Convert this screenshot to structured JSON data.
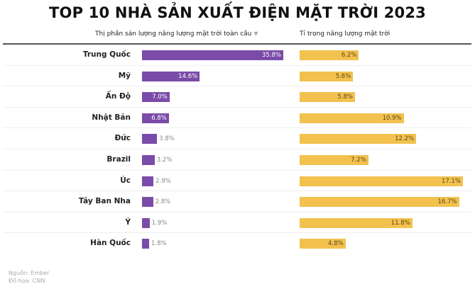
{
  "chart_data": {
    "type": "bar",
    "title": "TOP 10 NHÀ SẢN XUẤT ĐIỆN MẶT TRỜI 2023",
    "categories": [
      "Trung Quốc",
      "Mỹ",
      "Ấn Độ",
      "Nhật Bản",
      "Đức",
      "Brazil",
      "Úc",
      "Tây Ban Nha",
      "Ý",
      "Hàn Quốc"
    ],
    "series": [
      {
        "name": "Thị phần sản lượng năng lượng mặt trời toàn cầu",
        "values": [
          35.8,
          14.6,
          7.0,
          6.8,
          3.8,
          3.2,
          2.9,
          2.8,
          1.9,
          1.8
        ],
        "labels": [
          "35.8%",
          "14.6%",
          "7.0%",
          "6.8%",
          "3.8%",
          "3.2%",
          "2.9%",
          "2.8%",
          "1.9%",
          "1.8%"
        ],
        "color": "#7a4ba8",
        "sorted": true
      },
      {
        "name": "Tỉ trọng năng lượng mặt trời",
        "values": [
          6.2,
          5.6,
          5.8,
          10.9,
          12.2,
          7.2,
          17.1,
          16.7,
          11.8,
          4.8
        ],
        "labels": [
          "6.2%",
          "5.6%",
          "5.8%",
          "10.9%",
          "12.2%",
          "7.2%",
          "17.1%",
          "16.7%",
          "11.8%",
          "4.8%"
        ],
        "color": "#f2c14e"
      }
    ],
    "unit": "%",
    "legend": "column headers at top",
    "grid": false
  },
  "header": {
    "col_left": "Thị phần sản lượng năng lượng mặt trời toàn cầu",
    "col_left_sort_icon": "▼",
    "col_right": "Tỉ trọng năng lượng mặt trời"
  },
  "footer": {
    "source": "Nguồn: Ember",
    "graphic": "Đồ họa: CNN"
  }
}
